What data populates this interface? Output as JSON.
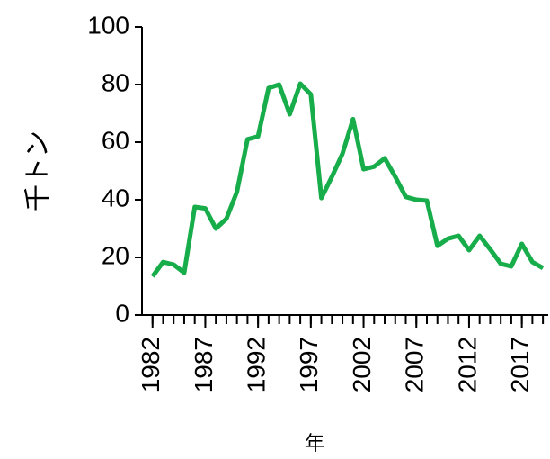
{
  "chart_data": {
    "type": "line",
    "xlabel": "年",
    "ylabel": "千トン",
    "x": [
      1982,
      1983,
      1984,
      1985,
      1986,
      1987,
      1988,
      1989,
      1990,
      1991,
      1992,
      1993,
      1994,
      1995,
      1996,
      1997,
      1998,
      1999,
      2000,
      2001,
      2002,
      2003,
      2004,
      2005,
      2006,
      2007,
      2008,
      2009,
      2010,
      2011,
      2012,
      2013,
      2014,
      2015,
      2016,
      2017,
      2018,
      2019
    ],
    "series": [
      {
        "color": "#17ad4a",
        "values": [
          13.4,
          18.4,
          17.5,
          14.7,
          37.5,
          37,
          30,
          33.4,
          42.8,
          61,
          62,
          78.8,
          80,
          69.7,
          80.3,
          76.6,
          40.6,
          48,
          56,
          68,
          50.6,
          51.5,
          54.4,
          48,
          41,
          40,
          39.7,
          24,
          26.5,
          27.5,
          22.5,
          27.5,
          22.8,
          17.8,
          16.9,
          24.7,
          18.4,
          16.3
        ]
      }
    ],
    "xlim": [
      1981,
      2019.5
    ],
    "xticks": [
      1982,
      1987,
      1992,
      1997,
      2002,
      2007,
      2012,
      2017
    ],
    "ylim": [
      0,
      100
    ],
    "yticks": [
      0,
      20,
      40,
      60,
      80,
      100
    ]
  }
}
